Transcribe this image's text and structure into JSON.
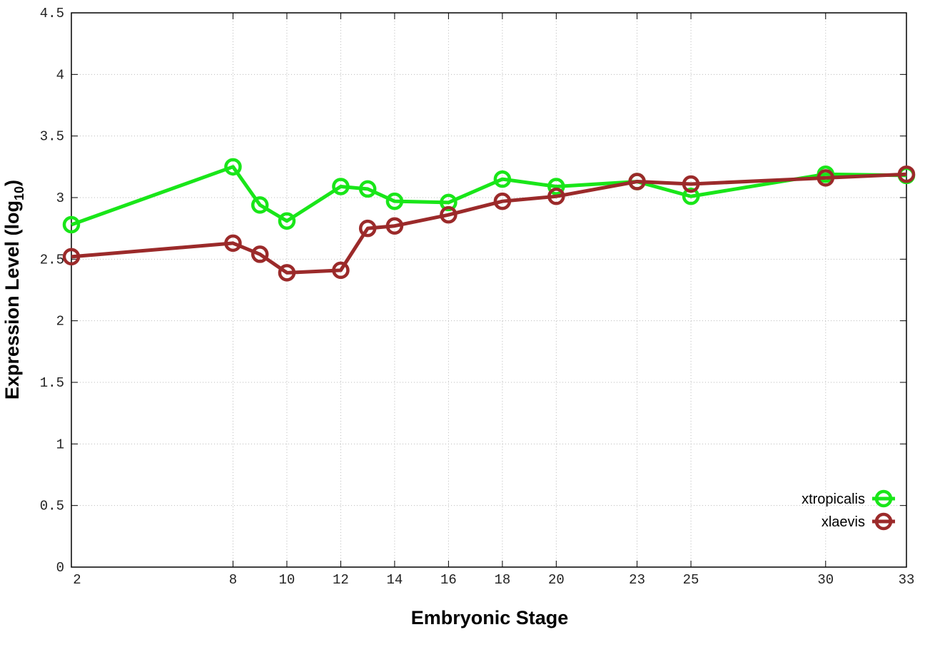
{
  "chart_data": {
    "type": "line",
    "title": "",
    "xlabel": "Embryonic Stage",
    "ylabel": "Expression Level (log10)",
    "ylabel_main": "Expression Level (log",
    "ylabel_sub": "10",
    "ylabel_close": ")",
    "xlim": [
      2,
      33
    ],
    "ylim": [
      0,
      4.5
    ],
    "x_ticks": [
      2,
      8,
      10,
      12,
      14,
      16,
      18,
      20,
      23,
      25,
      30,
      33
    ],
    "y_ticks": [
      "0",
      "0.5",
      "1",
      "1.5",
      "2",
      "2.5",
      "3",
      "3.5",
      "4",
      "4.5"
    ],
    "grid": true,
    "legend_position": "bottom-right",
    "x": [
      2,
      8,
      9,
      10,
      12,
      13,
      14,
      16,
      18,
      20,
      23,
      25,
      30,
      33
    ],
    "series": [
      {
        "name": "xtropicalis",
        "color": "#19e619",
        "values": [
          2.78,
          3.25,
          2.94,
          2.81,
          3.09,
          3.07,
          2.97,
          2.96,
          3.15,
          3.09,
          3.13,
          3.01,
          3.19,
          3.18
        ]
      },
      {
        "name": "xlaevis",
        "color": "#9b2a2a",
        "values": [
          2.52,
          2.63,
          2.54,
          2.39,
          2.41,
          2.75,
          2.77,
          2.86,
          2.97,
          3.01,
          3.13,
          3.11,
          3.16,
          3.19
        ]
      }
    ]
  }
}
